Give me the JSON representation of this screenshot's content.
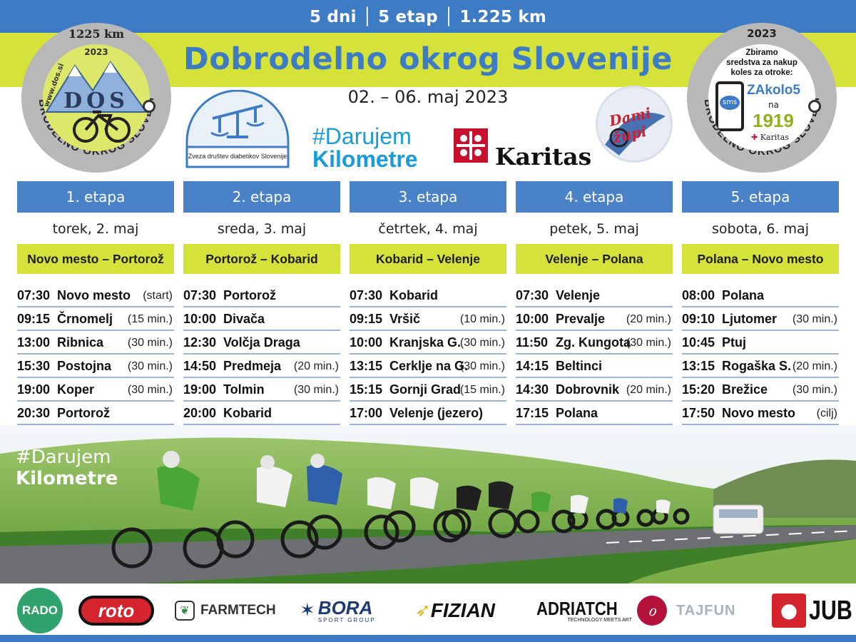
{
  "header": {
    "tagline": "5 dni │ 5 etap │ 1.225 km",
    "title": "Dobrodelno okrog Slovenije",
    "dates": "02. – 06. maj 2023"
  },
  "badge_left": {
    "km": "1225 km",
    "year": "2023",
    "web": "www.dos.si",
    "logo": "DOS",
    "ring_text": "DOBRODELNO OKROG SLOVENIJE"
  },
  "badge_right": {
    "year": "2023",
    "text1": "Zbiramo",
    "text2": "sredstva za nakup",
    "text3": "koles za otroke:",
    "sms_label": "sms",
    "sms_code": "ZAkolo5",
    "na": "na",
    "number": "1919",
    "karitas": "Karitas",
    "ring_text": "DOBRODELNO OKROG SLOVENIJE"
  },
  "logos": {
    "zds": "Zveza društev diabetikov Slovenije",
    "darujem_hash": "#Darujem",
    "darujem_word": "Kilometre",
    "karitas": "Karitas",
    "dami_zupi": "Dami župi"
  },
  "stages": [
    {
      "head": "1. etapa",
      "day": "torek, 2. maj",
      "route": "Novo mesto – Portorož",
      "rows": [
        {
          "time": "07:30",
          "place": "Novo mesto",
          "stop": "(start)"
        },
        {
          "time": "09:15",
          "place": "Črnomelj",
          "stop": "(15 min.)"
        },
        {
          "time": "13:00",
          "place": "Ribnica",
          "stop": "(30 min.)"
        },
        {
          "time": "15:30",
          "place": "Postojna",
          "stop": "(30 min.)"
        },
        {
          "time": "19:00",
          "place": "Koper",
          "stop": "(30 min.)"
        },
        {
          "time": "20:30",
          "place": "Portorož",
          "stop": ""
        }
      ]
    },
    {
      "head": "2. etapa",
      "day": "sreda, 3. maj",
      "route": "Portorož – Kobarid",
      "rows": [
        {
          "time": "07:30",
          "place": "Portorož",
          "stop": ""
        },
        {
          "time": "10:00",
          "place": "Divača",
          "stop": ""
        },
        {
          "time": "12:30",
          "place": "Volčja Draga",
          "stop": ""
        },
        {
          "time": "14:50",
          "place": "Predmeja",
          "stop": "(20 min.)"
        },
        {
          "time": "19:00",
          "place": "Tolmin",
          "stop": "(30 min.)"
        },
        {
          "time": "20:00",
          "place": "Kobarid",
          "stop": ""
        }
      ]
    },
    {
      "head": "3. etapa",
      "day": "četrtek, 4. maj",
      "route": "Kobarid – Velenje",
      "rows": [
        {
          "time": "07:30",
          "place": "Kobarid",
          "stop": ""
        },
        {
          "time": "09:15",
          "place": "Vršič",
          "stop": "(10 min.)"
        },
        {
          "time": "10:00",
          "place": "Kranjska G.",
          "stop": "(30 min.)"
        },
        {
          "time": "13:15",
          "place": "Cerklje na G.",
          "stop": "(30 min.)"
        },
        {
          "time": "15:15",
          "place": "Gornji Grad",
          "stop": "(15 min.)"
        },
        {
          "time": "17:00",
          "place": "Velenje (jezero)",
          "stop": ""
        }
      ]
    },
    {
      "head": "4. etapa",
      "day": "petek, 5. maj",
      "route": "Velenje – Polana",
      "rows": [
        {
          "time": "07:30",
          "place": "Velenje",
          "stop": ""
        },
        {
          "time": "10:00",
          "place": "Prevalje",
          "stop": "(20 min.)"
        },
        {
          "time": "11:50",
          "place": "Zg. Kungota",
          "stop": "(30 min.)"
        },
        {
          "time": "14:15",
          "place": "Beltinci",
          "stop": ""
        },
        {
          "time": "14:30",
          "place": "Dobrovnik",
          "stop": "(20 min.)"
        },
        {
          "time": "17:15",
          "place": "Polana",
          "stop": ""
        }
      ]
    },
    {
      "head": "5. etapa",
      "day": "sobota, 6. maj",
      "route": "Polana – Novo mesto",
      "rows": [
        {
          "time": "08:00",
          "place": "Polana",
          "stop": ""
        },
        {
          "time": "09:10",
          "place": "Ljutomer",
          "stop": "(30 min.)"
        },
        {
          "time": "10:45",
          "place": "Ptuj",
          "stop": ""
        },
        {
          "time": "13:15",
          "place": "Rogaška S.",
          "stop": "(20 min.)"
        },
        {
          "time": "15:20",
          "place": "Brežice",
          "stop": "(30 min.)"
        },
        {
          "time": "17:50",
          "place": "Novo mesto",
          "stop": "(cilj)"
        }
      ]
    }
  ],
  "photo": {
    "hash_a": "#Darujem",
    "hash_b": "Kilometre"
  },
  "sponsors": {
    "rado": "RADO",
    "roto": "roto",
    "farmtech": "FARMTECH",
    "bora": "BORA",
    "bora_sub": "SPORT GROUP",
    "fizian": "FIZIAN",
    "adriatech": "ADRIATCH",
    "adriatech_sub": "TECHNOLOGY MEETS ART",
    "tajfun": "TAJFUN",
    "jub": "JUB"
  },
  "colors": {
    "blue": "#3d7cc4",
    "lime": "#d4e23a"
  }
}
